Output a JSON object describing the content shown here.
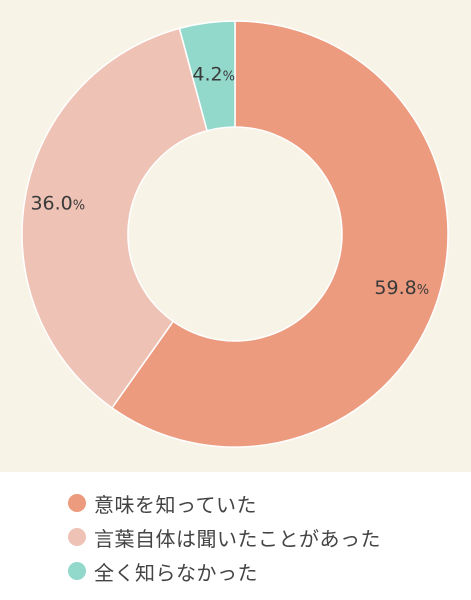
{
  "chart_data": {
    "type": "pie",
    "categories": [
      "意味を知っていた",
      "言葉自体は聞いたことがあった",
      "全く知らなかった"
    ],
    "values": [
      59.8,
      36.0,
      4.2
    ],
    "value_labels": [
      "59.8",
      "36.0",
      "4.2"
    ],
    "unit": "%",
    "colors": [
      "#ec9b7f",
      "#eec3b5",
      "#93d9cb"
    ],
    "legend_position": "bottom",
    "donut": true
  },
  "legend": {
    "items": [
      {
        "label": "意味を知っていた",
        "color": "#ec9b7f"
      },
      {
        "label": "言葉自体は聞いたことがあった",
        "color": "#eec3b5"
      },
      {
        "label": "全く知らなかった",
        "color": "#93d9cb"
      }
    ]
  }
}
